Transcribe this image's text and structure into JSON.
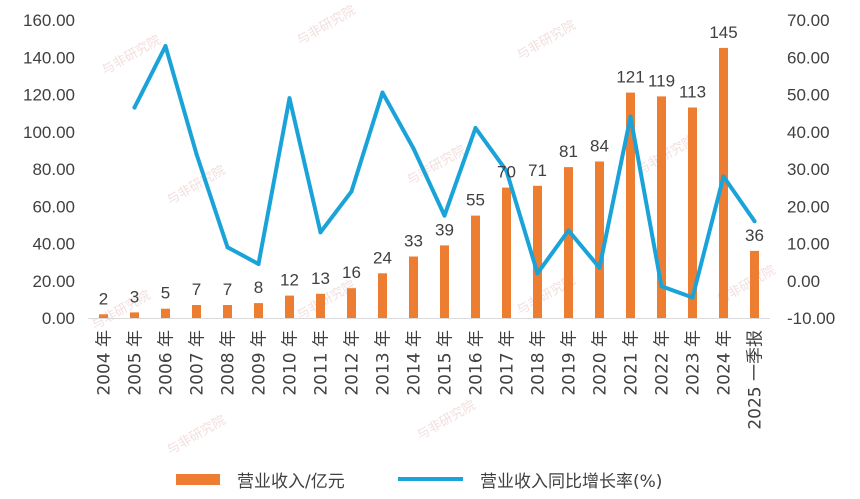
{
  "colors": {
    "bar": "#ED7D31",
    "line": "#1AA3D9",
    "text": "#404040",
    "axis": "#d9d9d9"
  },
  "chart_data": {
    "type": "bar",
    "categories": [
      "2004 年",
      "2005 年",
      "2006 年",
      "2007 年",
      "2008 年",
      "2009 年",
      "2010 年",
      "2011 年",
      "2012 年",
      "2013 年",
      "2014 年",
      "2015 年",
      "2016 年",
      "2017 年",
      "2018 年",
      "2019 年",
      "2020 年",
      "2021 年",
      "2022 年",
      "2023 年",
      "2024 年",
      "2025 一季报"
    ],
    "series": [
      {
        "name": "营业收入/亿元",
        "type": "bar",
        "axis": "left",
        "values": [
          2,
          3,
          5,
          7,
          7,
          8,
          12,
          13,
          16,
          24,
          33,
          39,
          55,
          70,
          71,
          81,
          84,
          121,
          119,
          113,
          145,
          36
        ],
        "labels": [
          "2",
          "3",
          "5",
          "7",
          "7",
          "8",
          "12",
          "13",
          "16",
          "24",
          "33",
          "39",
          "55",
          "70",
          "71",
          "81",
          "84",
          "121",
          "119",
          "113",
          "145",
          "36"
        ]
      },
      {
        "name": "营业收入同比增长率(%)",
        "type": "line",
        "axis": "right",
        "values": [
          null,
          46.5,
          63.0,
          34.0,
          9.0,
          4.5,
          49.0,
          13.0,
          24.0,
          50.5,
          35.5,
          17.5,
          41.0,
          29.5,
          2.0,
          13.5,
          3.5,
          44.0,
          -1.5,
          -4.5,
          28.0,
          16.0
        ]
      }
    ],
    "y_left": {
      "ylim": [
        0,
        160
      ],
      "ticks": [
        "0.00",
        "20.00",
        "40.00",
        "60.00",
        "80.00",
        "100.00",
        "120.00",
        "140.00",
        "160.00"
      ]
    },
    "y_right": {
      "ylim": [
        -10,
        70
      ],
      "ticks": [
        "-10.00",
        "0.00",
        "10.00",
        "20.00",
        "30.00",
        "40.00",
        "50.00",
        "60.00",
        "70.00"
      ]
    },
    "grid": false,
    "legend_position": "bottom"
  },
  "watermark": {
    "text": "与非研究院"
  }
}
